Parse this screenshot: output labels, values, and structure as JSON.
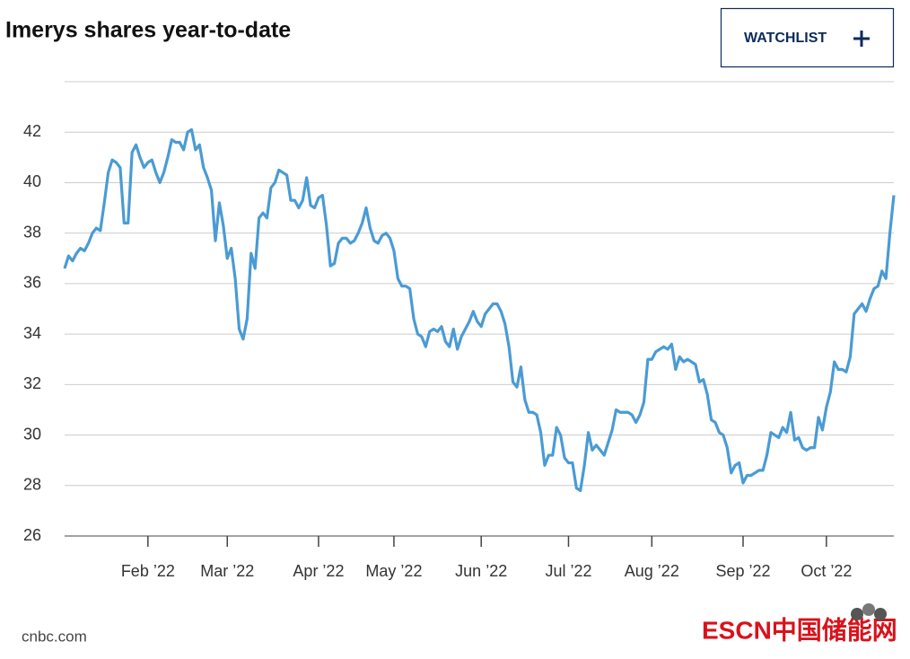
{
  "chart_data": {
    "type": "line",
    "title": "Imerys shares year-to-date",
    "series": [
      {
        "color": "#4a9bd4",
        "values": [
          36.6,
          37.1,
          36.9,
          37.2,
          37.4,
          37.3,
          37.6,
          38.0,
          38.2,
          38.1,
          39.2,
          40.4,
          40.9,
          40.8,
          40.6,
          38.4,
          38.4,
          41.2,
          41.5,
          41.0,
          40.6,
          40.8,
          40.9,
          40.4,
          40.0,
          40.4,
          41.0,
          41.7,
          41.6,
          41.6,
          41.3,
          42.0,
          42.1,
          41.3,
          41.5,
          40.6,
          40.2,
          39.7,
          37.7,
          39.2,
          38.3,
          37.0,
          37.4,
          36.2,
          34.2,
          33.8,
          34.6,
          37.2,
          36.6,
          38.6,
          38.8,
          38.6,
          39.8,
          40.0,
          40.5,
          40.4,
          40.3,
          39.3,
          39.3,
          39.0,
          39.3,
          40.2,
          39.1,
          39.0,
          39.4,
          39.5,
          38.3,
          36.7,
          36.8,
          37.6,
          37.8,
          37.8,
          37.6,
          37.7,
          38.0,
          38.4,
          39.0,
          38.2,
          37.7,
          37.6,
          37.9,
          38.0,
          37.8,
          37.3,
          36.2,
          35.9,
          35.9,
          35.8,
          34.6,
          34.0,
          33.9,
          33.5,
          34.1,
          34.2,
          34.1,
          34.3,
          33.7,
          33.5,
          34.2,
          33.4,
          33.9,
          34.2,
          34.5,
          34.9,
          34.5,
          34.3,
          34.8,
          35.0,
          35.2,
          35.2,
          34.9,
          34.4,
          33.5,
          32.1,
          31.9,
          32.7,
          31.4,
          30.9,
          30.9,
          30.8,
          30.1,
          28.8,
          29.2,
          29.2,
          30.3,
          30.0,
          29.1,
          28.9,
          28.9,
          27.9,
          27.8,
          28.8,
          30.1,
          29.4,
          29.6,
          29.4,
          29.2,
          29.7,
          30.2,
          31.0,
          30.9,
          30.9,
          30.9,
          30.8,
          30.5,
          30.8,
          31.3,
          33.0,
          33.0,
          33.3,
          33.4,
          33.5,
          33.4,
          33.6,
          32.6,
          33.1,
          32.9,
          33.0,
          32.9,
          32.8,
          32.1,
          32.2,
          31.6,
          30.6,
          30.5,
          30.1,
          30.0,
          29.5,
          28.5,
          28.8,
          28.9,
          28.1,
          28.4,
          28.4,
          28.5,
          28.6,
          28.6,
          29.2,
          30.1,
          30.0,
          29.9,
          30.3,
          30.1,
          30.9,
          29.8,
          29.9,
          29.5,
          29.4,
          29.5,
          29.5,
          30.7,
          30.2,
          31.1,
          31.7,
          32.9,
          32.6,
          32.6,
          32.5,
          33.1,
          34.8,
          35.0,
          35.2,
          34.9,
          35.4,
          35.8,
          35.9,
          36.5,
          36.2,
          38.0,
          39.5
        ]
      }
    ],
    "xlim": [
      0,
      209
    ],
    "xticks": [
      {
        "value": 21,
        "label": "Feb ’22"
      },
      {
        "value": 41,
        "label": "Mar ’22"
      },
      {
        "value": 64,
        "label": "Apr ’22"
      },
      {
        "value": 83,
        "label": "May ’22"
      },
      {
        "value": 105,
        "label": "Jun ’22"
      },
      {
        "value": 127,
        "label": "Jul ’22"
      },
      {
        "value": 148,
        "label": "Aug ’22"
      },
      {
        "value": 171,
        "label": "Sep ’22"
      },
      {
        "value": 192,
        "label": "Oct ’22"
      }
    ],
    "ylim": [
      26,
      44
    ],
    "yticks": [
      26,
      28,
      30,
      32,
      34,
      36,
      38,
      40,
      42
    ],
    "grid": true
  },
  "watchlist_button": "WATCHLIST",
  "source": "cnbc.com",
  "watermark": "ESCN中国储能网"
}
